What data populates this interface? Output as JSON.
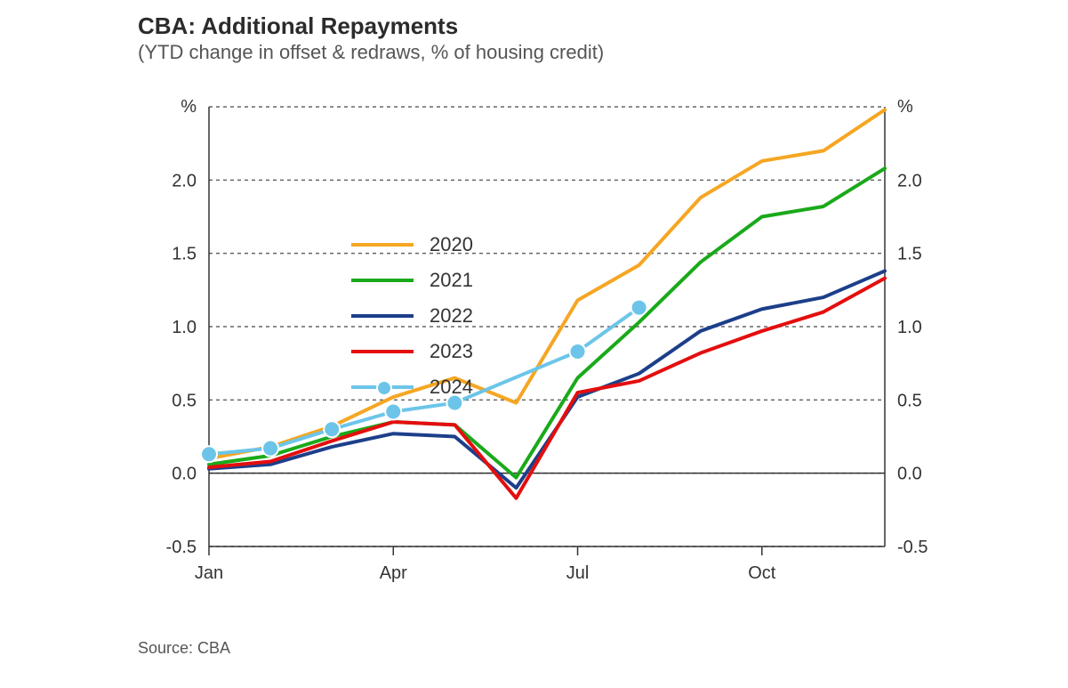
{
  "title": "CBA: Additional Repayments",
  "subtitle": "(YTD change in offset & redraws, % of housing credit)",
  "source": "Source: CBA",
  "chart": {
    "type": "line",
    "background_color": "#ffffff",
    "plot_border_color": "#333333",
    "grid_color": "#666666",
    "grid_dash": "4,4",
    "axis_color": "#333333",
    "tick_font_size": 20,
    "tick_color": "#333333",
    "x": {
      "domain_min": 1,
      "domain_max": 12,
      "tick_positions": [
        1,
        4,
        7,
        10
      ],
      "tick_labels": [
        "Jan",
        "Apr",
        "Jul",
        "Oct"
      ]
    },
    "y": {
      "domain_min": -0.5,
      "domain_max": 2.5,
      "tick_positions": [
        -0.5,
        0.0,
        0.5,
        1.0,
        1.5,
        2.0
      ],
      "tick_labels": [
        "-0.5",
        "0.0",
        "0.5",
        "1.0",
        "1.5",
        "2.0"
      ],
      "unit_label": "%"
    },
    "y_right": {
      "tick_positions": [
        -0.5,
        0.0,
        0.5,
        1.0,
        1.5,
        2.0
      ],
      "tick_labels": [
        "-0.5",
        "0.0",
        "0.5",
        "1.0",
        "1.5",
        "2.0"
      ],
      "unit_label": "%"
    },
    "zero_line": true,
    "series": [
      {
        "label": "2020",
        "color": "#f5a623",
        "line_width": 4,
        "marker": null,
        "x": [
          1,
          2,
          3,
          4,
          5,
          6,
          7,
          8,
          9,
          10,
          11,
          12
        ],
        "y": [
          0.1,
          0.18,
          0.32,
          0.52,
          0.65,
          0.48,
          1.18,
          1.42,
          1.88,
          2.13,
          2.2,
          2.48
        ]
      },
      {
        "label": "2021",
        "color": "#1aa91a",
        "line_width": 4,
        "marker": null,
        "x": [
          1,
          2,
          3,
          4,
          5,
          6,
          7,
          8,
          9,
          10,
          11,
          12
        ],
        "y": [
          0.06,
          0.12,
          0.25,
          0.35,
          0.33,
          -0.03,
          0.65,
          1.03,
          1.44,
          1.75,
          1.82,
          2.08
        ]
      },
      {
        "label": "2022",
        "color": "#1c3f8a",
        "line_width": 4,
        "marker": null,
        "x": [
          1,
          2,
          3,
          4,
          5,
          6,
          7,
          8,
          9,
          10,
          11,
          12
        ],
        "y": [
          0.03,
          0.06,
          0.18,
          0.27,
          0.25,
          -0.1,
          0.52,
          0.68,
          0.97,
          1.12,
          1.2,
          1.38
        ]
      },
      {
        "label": "2023",
        "color": "#e40e0e",
        "line_width": 4,
        "marker": null,
        "x": [
          1,
          2,
          3,
          4,
          5,
          6,
          7,
          8,
          9,
          10,
          11,
          12
        ],
        "y": [
          0.04,
          0.08,
          0.22,
          0.35,
          0.33,
          -0.17,
          0.55,
          0.63,
          0.82,
          0.97,
          1.1,
          1.33
        ]
      },
      {
        "label": "2024",
        "color": "#6cc5e9",
        "line_width": 4,
        "marker": "circle",
        "marker_size": 9,
        "marker_fill": "#6cc5e9",
        "marker_stroke": "#ffffff",
        "x": [
          1,
          2,
          3,
          4,
          5,
          7,
          8
        ],
        "y": [
          0.13,
          0.17,
          0.3,
          0.42,
          0.48,
          0.83,
          1.13
        ]
      }
    ],
    "legend": {
      "position": "inside-top-left",
      "font_size": 22
    }
  }
}
